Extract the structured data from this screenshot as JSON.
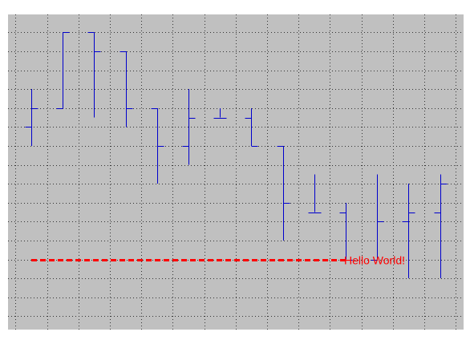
{
  "chart_data": {
    "type": "ohlc",
    "title": "",
    "xlabel": "",
    "ylabel": "",
    "grid": true,
    "colors": {
      "plot_background": "#c0c0c0",
      "bars": "#0000cc",
      "grid": "#333333",
      "annotation": "#ff0000"
    },
    "ylim": [
      0,
      17
    ],
    "bars": [
      {
        "open": 11.0,
        "high": 13.0,
        "low": 10.0,
        "close": 12.0
      },
      {
        "open": 12.0,
        "high": 16.0,
        "low": 12.0,
        "close": 16.0
      },
      {
        "open": 16.0,
        "high": 16.0,
        "low": 11.5,
        "close": 15.0
      },
      {
        "open": 15.0,
        "high": 15.0,
        "low": 11.0,
        "close": 12.0
      },
      {
        "open": 12.0,
        "high": 12.0,
        "low": 8.0,
        "close": 10.0
      },
      {
        "open": 10.0,
        "high": 13.0,
        "low": 9.0,
        "close": 11.5
      },
      {
        "open": 11.5,
        "high": 12.0,
        "low": 11.5,
        "close": 11.5
      },
      {
        "open": 11.5,
        "high": 12.0,
        "low": 10.0,
        "close": 10.0
      },
      {
        "open": 10.0,
        "high": 10.0,
        "low": 5.0,
        "close": 7.0
      },
      {
        "open": 6.5,
        "high": 8.5,
        "low": 6.5,
        "close": 6.5
      },
      {
        "open": 6.5,
        "high": 7.0,
        "low": 4.0,
        "close": 4.0
      },
      {
        "open": 4.0,
        "high": 8.5,
        "low": 4.0,
        "close": 6.0
      },
      {
        "open": 6.0,
        "high": 8.0,
        "low": 3.0,
        "close": 6.5
      },
      {
        "open": 6.5,
        "high": 8.5,
        "low": 3.0,
        "close": 8.0
      }
    ],
    "annotations": [
      {
        "text": "Hello World!",
        "y": 4.0,
        "x_start_bar": 0,
        "x_end_bar": 10,
        "line_style": "dashed"
      }
    ]
  }
}
